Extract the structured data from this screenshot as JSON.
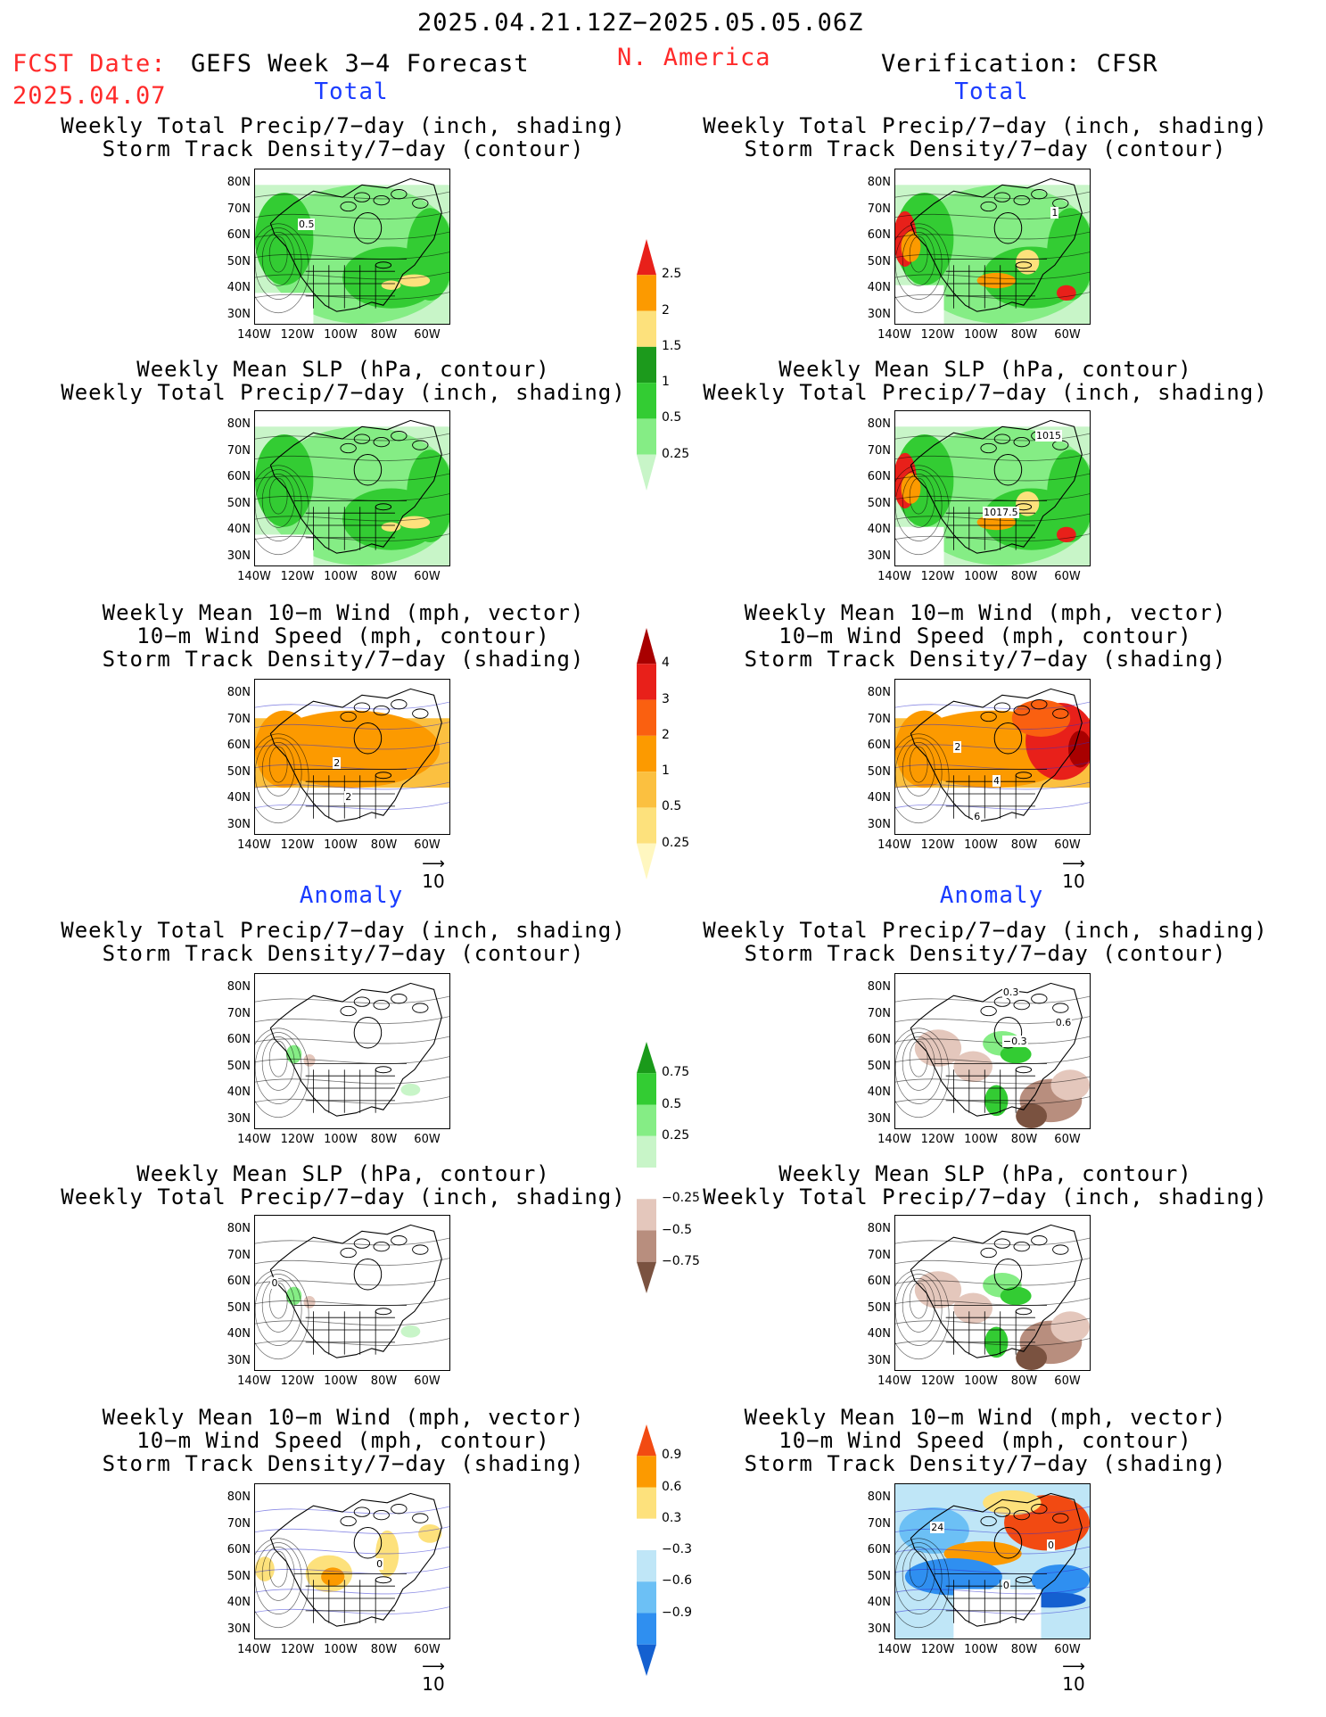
{
  "header": {
    "date_range": "2025.04.21.12Z−2025.05.05.06Z",
    "fcst_label": "FCST Date:",
    "fcst_date": "2025.04.07",
    "model_title": "GEFS Week 3−4 Forecast",
    "region": "N. America",
    "verification": "Verification: CFSR"
  },
  "sections": {
    "total": "Total",
    "anomaly": "Anomaly"
  },
  "titles": {
    "precip_storm": [
      "Weekly Total Precip/7−day (inch, shading)",
      "Storm Track Density/7−day (contour)"
    ],
    "slp_precip": [
      "Weekly Mean SLP (hPa, contour)",
      "Weekly Total Precip/7−day (inch, shading)"
    ],
    "wind_storm": [
      "Weekly Mean 10−m Wind (mph, vector)",
      "10−m Wind Speed (mph, contour)",
      "Storm Track Density/7−day (shading)"
    ]
  },
  "axes": {
    "lat_labels": [
      "80N",
      "70N",
      "60N",
      "50N",
      "40N",
      "30N"
    ],
    "lon_labels": [
      "140W",
      "120W",
      "100W",
      "80W",
      "60W"
    ]
  },
  "vector_ref": "10",
  "map_labels": {
    "f_precip_contour": "0.5",
    "v_precip_contour": "1",
    "v_slp_1": "1015",
    "v_slp_2": "1017.5",
    "f_wind_1": "2",
    "f_wind_2": "2",
    "v_wind_1": "2",
    "v_wind_2": "4",
    "v_wind_3": "6",
    "va_precip_1": "0.3",
    "va_precip_2": "−0.3",
    "va_precip_3": "0.6",
    "fa_slp": "0",
    "fa_wind": "0",
    "va_wind_1": "24",
    "va_wind_2": "0",
    "va_wind_3": "0"
  },
  "colorbars": {
    "precip_total": {
      "labels": [
        "2.5",
        "2",
        "1.5",
        "1",
        "0.5",
        "0.25"
      ],
      "colors": [
        "#e8201a",
        "#fc9a00",
        "#fde17c",
        "#1c9a1c",
        "#33cc33",
        "#85ed85",
        "#c8f5c8"
      ]
    },
    "storm_total": {
      "labels": [
        "4",
        "3",
        "2",
        "1",
        "0.5",
        "0.25"
      ],
      "colors": [
        "#a80000",
        "#e8201a",
        "#fa6010",
        "#fc9a00",
        "#fbc040",
        "#fde17c",
        "#fff7c0"
      ]
    },
    "precip_anom": {
      "labels": [
        "0.75",
        "0.5",
        "0.25",
        "−0.25",
        "−0.5",
        "−0.75"
      ],
      "colors": [
        "#1a9a1a",
        "#33cc33",
        "#85ed85",
        "#c8f5c8",
        "#ffffff",
        "#e4c7bc",
        "#b88e7e",
        "#7a5240"
      ]
    },
    "storm_anom": {
      "labels": [
        "0.9",
        "0.6",
        "0.3",
        "−0.3",
        "−0.6",
        "−0.9"
      ],
      "colors": [
        "#f24a12",
        "#fc9a00",
        "#fde17c",
        "#ffffff",
        "#bfe6f7",
        "#6cc0f5",
        "#2f8ff0",
        "#1460d0"
      ]
    }
  }
}
